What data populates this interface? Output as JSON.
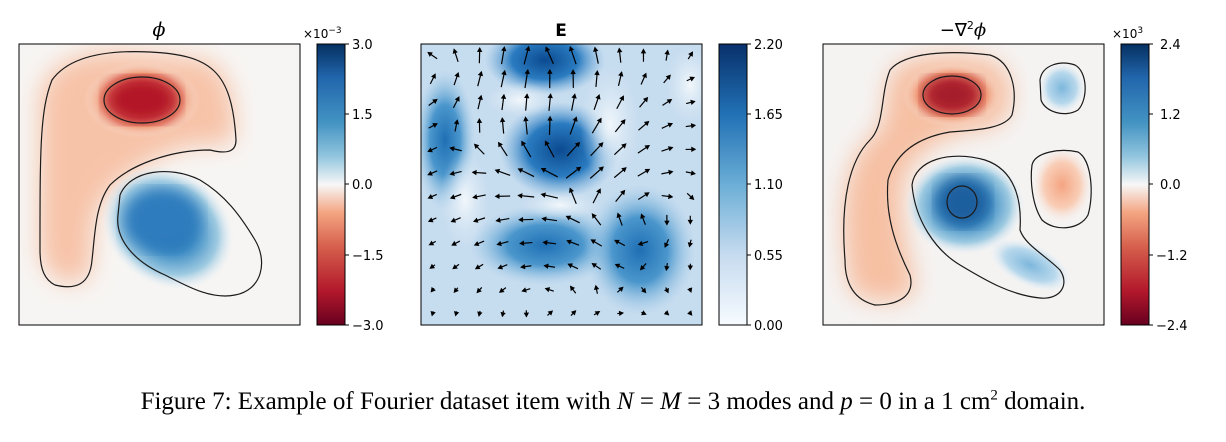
{
  "panels": [
    {
      "title": "ϕ",
      "colorbar": {
        "multiplier": "×10",
        "multiplier_exp": "−3",
        "ticks": [
          "3.0",
          "1.5",
          "0.0",
          "−1.5",
          "−3.0"
        ],
        "scale": "diverging red-white-blue",
        "colors": {
          "low": "#67001f",
          "mid": "#f7f7f7",
          "high": "#053061"
        }
      }
    },
    {
      "title": "E",
      "colorbar": {
        "multiplier": "",
        "multiplier_exp": "",
        "ticks": [
          "2.20",
          "1.65",
          "1.10",
          "0.55",
          "0.00"
        ],
        "scale": "sequential blues",
        "colors": {
          "low": "#f7fbff",
          "high": "#08306b"
        }
      }
    },
    {
      "title": "−∇",
      "title_sup": "2",
      "title_tail": "ϕ",
      "colorbar": {
        "multiplier": "×10",
        "multiplier_exp": "3",
        "ticks": [
          "2.4",
          "1.2",
          "0.0",
          "−1.2",
          "−2.4"
        ],
        "scale": "diverging red-white-blue",
        "colors": {
          "low": "#67001f",
          "mid": "#f7f7f7",
          "high": "#053061"
        }
      }
    }
  ],
  "caption": {
    "prefix": "Figure 7: Example of Fourier dataset item with ",
    "var_n": "N",
    "eq1": " = ",
    "var_m": "M",
    "eq2": " = 3 modes and ",
    "var_p": "p",
    "eq3": " = 0 in a 1 cm",
    "unit_exp": "2",
    "suffix": " domain."
  }
}
